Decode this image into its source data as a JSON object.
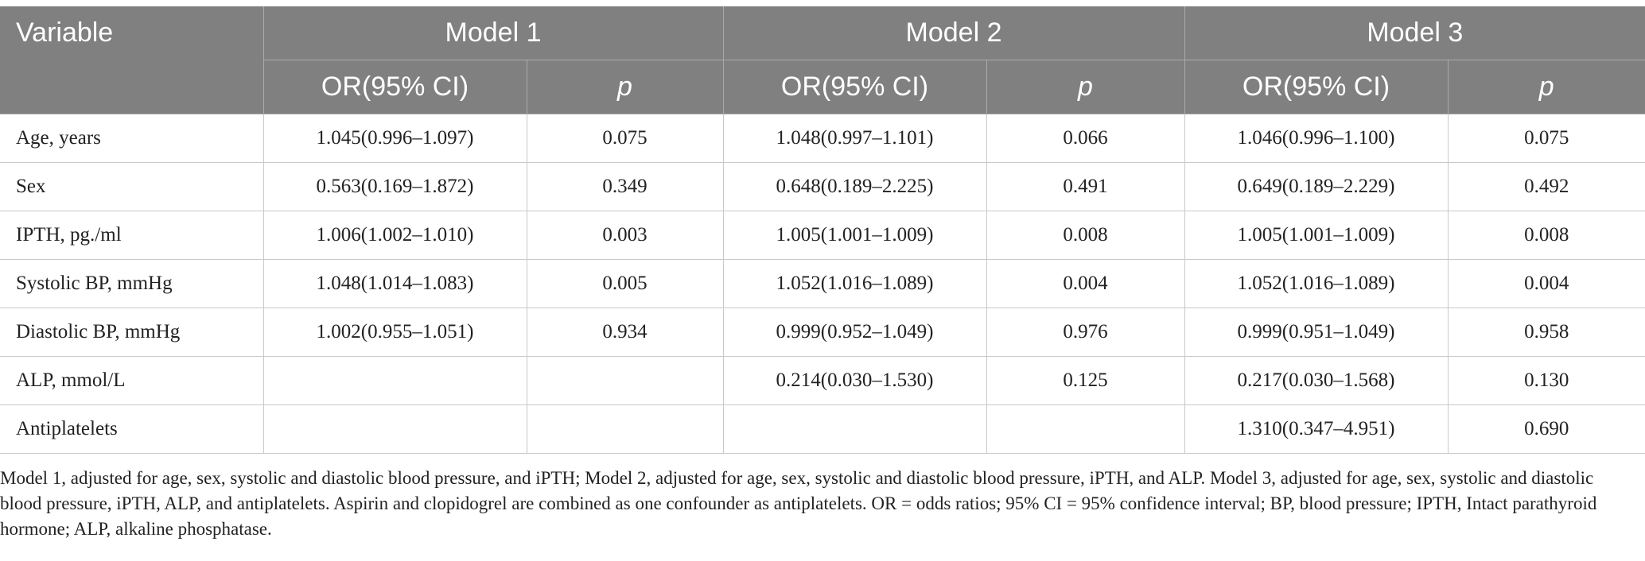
{
  "table": {
    "variable_header": "Variable",
    "models": [
      "Model 1",
      "Model 2",
      "Model 3"
    ],
    "or_header": "OR(95% CI)",
    "p_header": "p",
    "rows": [
      {
        "variable": "Age, years",
        "m1_or": "1.045(0.996–1.097)",
        "m1_p": "0.075",
        "m2_or": "1.048(0.997–1.101)",
        "m2_p": "0.066",
        "m3_or": "1.046(0.996–1.100)",
        "m3_p": "0.075"
      },
      {
        "variable": "Sex",
        "m1_or": "0.563(0.169–1.872)",
        "m1_p": "0.349",
        "m2_or": "0.648(0.189–2.225)",
        "m2_p": "0.491",
        "m3_or": "0.649(0.189–2.229)",
        "m3_p": "0.492"
      },
      {
        "variable": "IPTH, pg./ml",
        "m1_or": "1.006(1.002–1.010)",
        "m1_p": "0.003",
        "m2_or": "1.005(1.001–1.009)",
        "m2_p": "0.008",
        "m3_or": "1.005(1.001–1.009)",
        "m3_p": "0.008"
      },
      {
        "variable": "Systolic BP, mmHg",
        "m1_or": "1.048(1.014–1.083)",
        "m1_p": "0.005",
        "m2_or": "1.052(1.016–1.089)",
        "m2_p": "0.004",
        "m3_or": "1.052(1.016–1.089)",
        "m3_p": "0.004"
      },
      {
        "variable": "Diastolic BP, mmHg",
        "m1_or": "1.002(0.955–1.051)",
        "m1_p": "0.934",
        "m2_or": "0.999(0.952–1.049)",
        "m2_p": "0.976",
        "m3_or": "0.999(0.951–1.049)",
        "m3_p": "0.958"
      },
      {
        "variable": "ALP, mmol/L",
        "m1_or": "",
        "m1_p": "",
        "m2_or": "0.214(0.030–1.530)",
        "m2_p": "0.125",
        "m3_or": "0.217(0.030–1.568)",
        "m3_p": "0.130"
      },
      {
        "variable": "Antiplatelets",
        "m1_or": "",
        "m1_p": "",
        "m2_or": "",
        "m2_p": "",
        "m3_or": "1.310(0.347–4.951)",
        "m3_p": "0.690"
      }
    ]
  },
  "footnote": "Model 1, adjusted for age, sex, systolic and diastolic blood pressure, and iPTH; Model 2, adjusted for age, sex, systolic and diastolic blood pressure, iPTH, and ALP. Model 3, adjusted for age, sex, systolic and diastolic blood pressure, iPTH, ALP, and antiplatelets. Aspirin and clopidogrel are combined as one confounder as antiplatelets. OR = odds ratios; 95% CI = 95% confidence interval; BP, blood pressure; IPTH, Intact parathyroid hormone; ALP, alkaline phosphatase.",
  "colors": {
    "header_bg": "#7f807f",
    "header_text": "#ffffff",
    "body_text": "#222222",
    "grid": "#c9c9c9"
  }
}
